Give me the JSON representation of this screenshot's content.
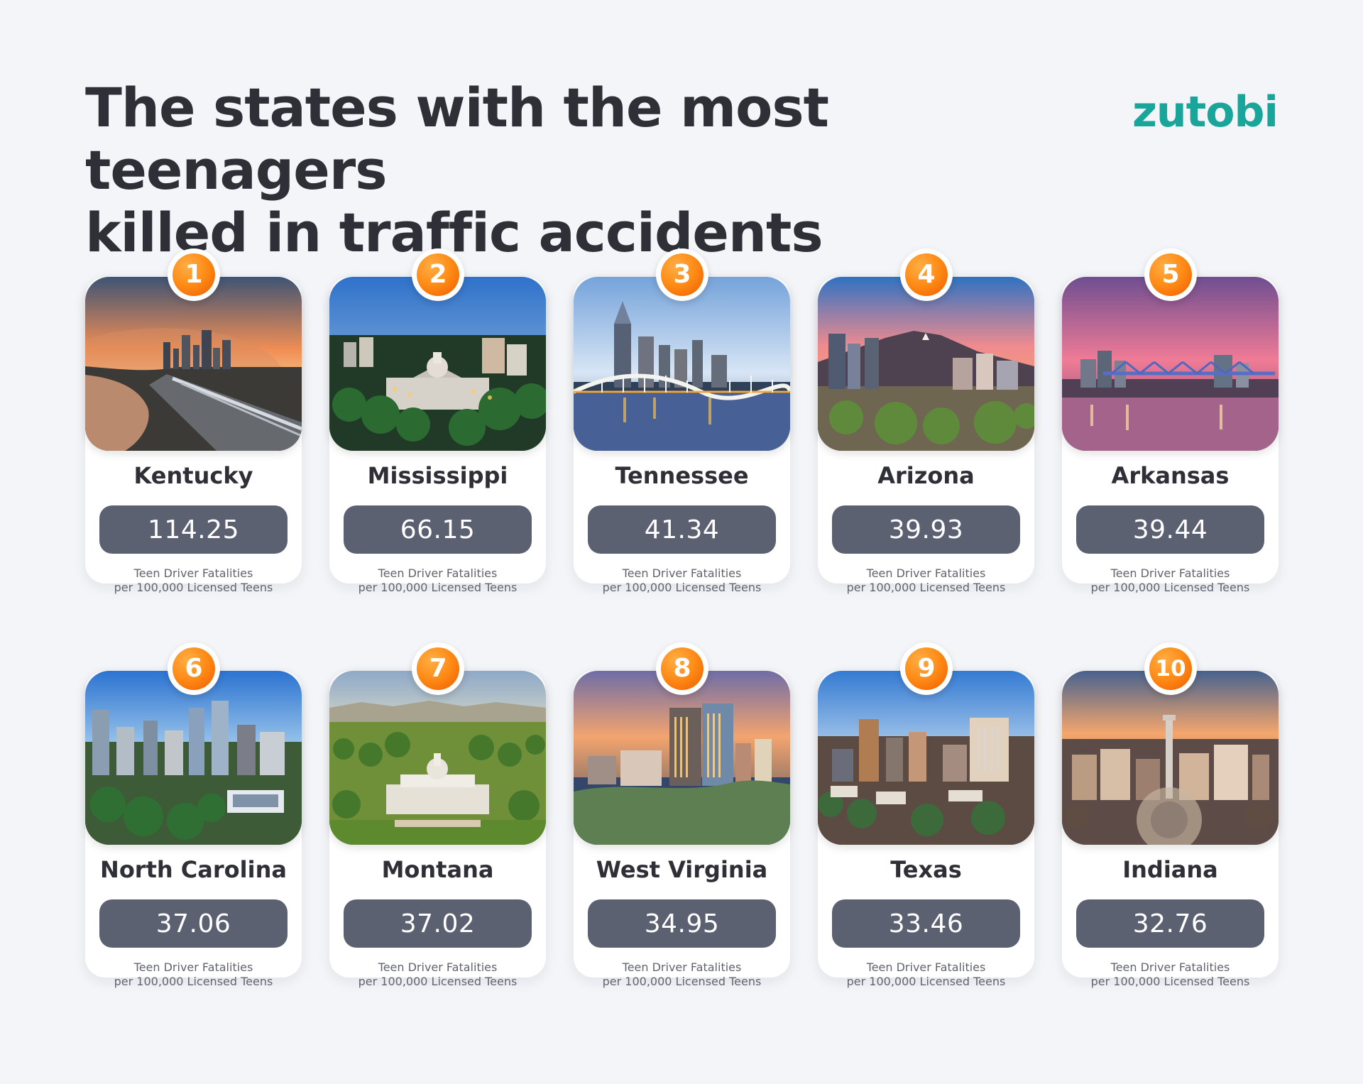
{
  "header": {
    "title_line_1": "The states with the most teenagers",
    "title_line_2": "killed in traffic accidents",
    "brand": "zutobi"
  },
  "metric_label": {
    "line_1": "Teen Driver Fatalities",
    "line_2": "per 100,000 Licensed Teens"
  },
  "colors": {
    "background": "#f3f5f8",
    "brand": "#1aa59a",
    "badge_orange": "#ff8b16",
    "value_pill": "#5c6172"
  },
  "states": [
    {
      "rank": "1",
      "name": "Kentucky",
      "value": "114.25"
    },
    {
      "rank": "2",
      "name": "Mississippi",
      "value": "66.15"
    },
    {
      "rank": "3",
      "name": "Tennessee",
      "value": "41.34"
    },
    {
      "rank": "4",
      "name": "Arizona",
      "value": "39.93"
    },
    {
      "rank": "5",
      "name": "Arkansas",
      "value": "39.44"
    },
    {
      "rank": "6",
      "name": "North Carolina",
      "value": "37.06"
    },
    {
      "rank": "7",
      "name": "Montana",
      "value": "37.02"
    },
    {
      "rank": "8",
      "name": "West Virginia",
      "value": "34.95"
    },
    {
      "rank": "9",
      "name": "Texas",
      "value": "33.46"
    },
    {
      "rank": "10",
      "name": "Indiana",
      "value": "32.76"
    }
  ]
}
